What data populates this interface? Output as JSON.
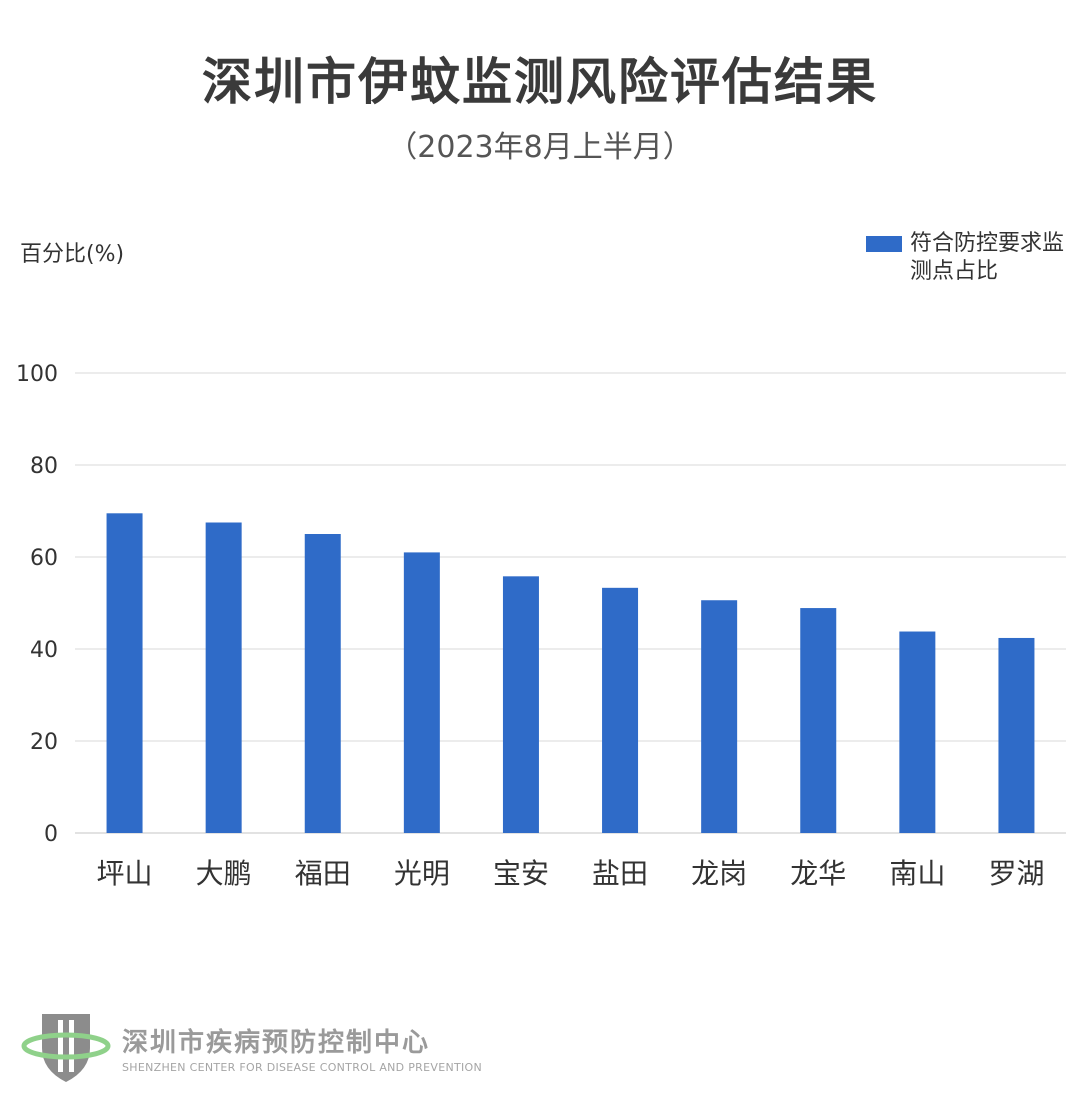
{
  "page": {
    "title": "深圳市伊蚊监测风险评估结果",
    "subtitle": "（2023年8月上半月）"
  },
  "footer": {
    "org_cn": "深圳市疾病预防控制中心",
    "org_en": "SHENZHEN CENTER FOR DISEASE CONTROL AND PREVENTION",
    "logo_icon": "cdc-shield-icon"
  },
  "colors": {
    "bar": "#2f6bc8",
    "grid": "#d9d9d9",
    "logo_gray": "#8c8c8c",
    "logo_green": "#8fd18a"
  },
  "chart_data": {
    "type": "bar",
    "ylabel": "百分比(%)",
    "categories": [
      "坪山",
      "大鹏",
      "福田",
      "光明",
      "宝安",
      "盐田",
      "龙岗",
      "龙华",
      "南山",
      "罗湖"
    ],
    "series": [
      {
        "name": "符合防控要求监测点占比",
        "values": [
          69.5,
          67.5,
          65.0,
          61.0,
          55.8,
          53.3,
          50.6,
          48.9,
          43.8,
          42.4
        ]
      }
    ],
    "ylim": [
      0,
      100
    ],
    "yticks": [
      0,
      20,
      40,
      60,
      80,
      100
    ],
    "grid": true,
    "legend_position": "top-right"
  }
}
